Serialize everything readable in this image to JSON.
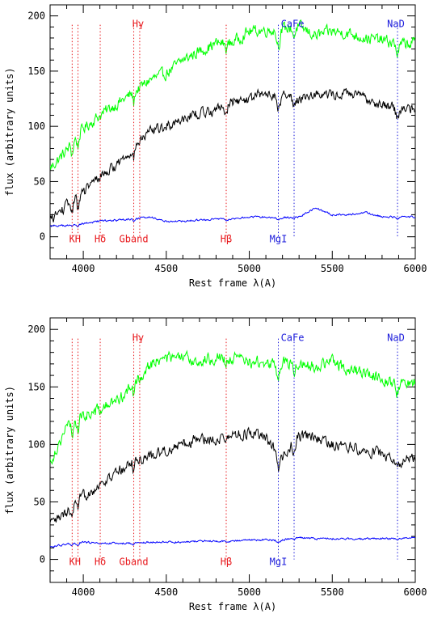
{
  "chart_data": [
    {
      "type": "line",
      "title": "",
      "xlabel": "Rest frame λ(A)",
      "ylabel": "flux (arbitrary units)",
      "xlim": [
        3800,
        6000
      ],
      "ylim": [
        -20,
        210
      ],
      "x_ticks": [
        4000,
        4500,
        5000,
        5500,
        6000
      ],
      "y_ticks": [
        0,
        50,
        100,
        150,
        200
      ],
      "grid": false,
      "legend": "none",
      "colors": {
        "upper": "#00ff00",
        "middle": "#000000",
        "lower": "#0000ff"
      },
      "series": [
        {
          "color": "#00ff00",
          "x": [
            3800,
            3900,
            4000,
            4100,
            4200,
            4300,
            4400,
            4500,
            4600,
            4700,
            4800,
            4900,
            5000,
            5100,
            5200,
            5300,
            5400,
            5500,
            5600,
            5700,
            5800,
            5900,
            6000
          ],
          "y": [
            62,
            78,
            98,
            110,
            120,
            130,
            142,
            148,
            160,
            168,
            175,
            176,
            186,
            187,
            188,
            190,
            182,
            186,
            184,
            180,
            178,
            174,
            176
          ]
        },
        {
          "color": "#000000",
          "x": [
            3800,
            3900,
            4000,
            4100,
            4200,
            4300,
            4400,
            4500,
            4600,
            4700,
            4800,
            4900,
            5000,
            5100,
            5200,
            5300,
            5400,
            5500,
            5600,
            5700,
            5800,
            5900,
            6000
          ],
          "y": [
            15,
            28,
            40,
            55,
            65,
            80,
            95,
            100,
            108,
            112,
            115,
            122,
            125,
            130,
            128,
            125,
            130,
            128,
            130,
            125,
            120,
            115,
            118
          ]
        },
        {
          "color": "#0000ff",
          "x": [
            3800,
            3900,
            4000,
            4100,
            4200,
            4300,
            4400,
            4500,
            4600,
            4700,
            4800,
            4900,
            5000,
            5100,
            5200,
            5300,
            5400,
            5500,
            5600,
            5700,
            5800,
            5900,
            6000
          ],
          "y": [
            10,
            10,
            12,
            14,
            15,
            16,
            18,
            14,
            14,
            15,
            16,
            16,
            18,
            18,
            17,
            18,
            26,
            20,
            20,
            22,
            18,
            18,
            18
          ]
        }
      ],
      "annotations": [
        {
          "text": "KH",
          "x": 3950,
          "line_x": [
            3933,
            3968
          ],
          "color": "#e8171b",
          "position": "bottom"
        },
        {
          "text": "Hδ",
          "x": 4102,
          "line_x": [
            4102
          ],
          "color": "#e8171b",
          "position": "bottom"
        },
        {
          "text": "Gband",
          "x": 4304,
          "line_x": [
            4304
          ],
          "color": "#e8171b",
          "position": "bottom"
        },
        {
          "text": "Hγ",
          "x": 4340,
          "line_x": [
            4340
          ],
          "color": "#e8171b",
          "position": "top"
        },
        {
          "text": "Hβ",
          "x": 4861,
          "line_x": [
            4861
          ],
          "color": "#e8171b",
          "position": "bottom"
        },
        {
          "text": "MgI",
          "x": 5175,
          "line_x": [
            5175
          ],
          "color": "#1a1adb",
          "position": "bottom"
        },
        {
          "text": "CaFe",
          "x": 5270,
          "line_x": [
            5270
          ],
          "color": "#1a1adb",
          "position": "top"
        },
        {
          "text": "NaD",
          "x": 5893,
          "line_x": [
            5893
          ],
          "color": "#1a1adb",
          "position": "top"
        }
      ]
    },
    {
      "type": "line",
      "title": "",
      "xlabel": "Rest frame λ(A)",
      "ylabel": "flux (arbitrary units)",
      "xlim": [
        3800,
        6000
      ],
      "ylim": [
        -20,
        210
      ],
      "x_ticks": [
        4000,
        4500,
        5000,
        5500,
        6000
      ],
      "y_ticks": [
        0,
        50,
        100,
        150,
        200
      ],
      "grid": false,
      "legend": "none",
      "colors": {
        "upper": "#00ff00",
        "middle": "#000000",
        "lower": "#0000ff"
      },
      "series": [
        {
          "color": "#00ff00",
          "x": [
            3800,
            3900,
            4000,
            4100,
            4200,
            4300,
            4400,
            4500,
            4600,
            4700,
            4800,
            4900,
            5000,
            5100,
            5200,
            5300,
            5400,
            5500,
            5600,
            5700,
            5800,
            5900,
            6000
          ],
          "y": [
            85,
            115,
            125,
            130,
            138,
            150,
            170,
            175,
            175,
            172,
            176,
            175,
            172,
            170,
            172,
            170,
            168,
            172,
            165,
            162,
            158,
            152,
            155
          ]
        },
        {
          "color": "#000000",
          "x": [
            3800,
            3900,
            4000,
            4100,
            4200,
            4300,
            4400,
            4500,
            4600,
            4700,
            4800,
            4900,
            5000,
            5100,
            5200,
            5300,
            5400,
            5500,
            5600,
            5700,
            5800,
            5900,
            6000
          ],
          "y": [
            30,
            40,
            55,
            65,
            75,
            85,
            90,
            95,
            100,
            105,
            105,
            108,
            110,
            105,
            88,
            108,
            105,
            100,
            98,
            95,
            92,
            85,
            90
          ]
        },
        {
          "color": "#0000ff",
          "x": [
            3800,
            3900,
            4000,
            4100,
            4200,
            4300,
            4400,
            4500,
            4600,
            4700,
            4800,
            4900,
            5000,
            5100,
            5200,
            5300,
            5400,
            5500,
            5600,
            5700,
            5800,
            5900,
            6000
          ],
          "y": [
            11,
            13,
            15,
            14,
            14,
            14,
            15,
            15,
            15,
            16,
            16,
            16,
            17,
            17,
            17,
            19,
            18,
            18,
            18,
            18,
            18,
            18,
            19
          ]
        }
      ],
      "annotations": [
        {
          "text": "KH",
          "x": 3950,
          "line_x": [
            3933,
            3968
          ],
          "color": "#e8171b",
          "position": "bottom"
        },
        {
          "text": "Hδ",
          "x": 4102,
          "line_x": [
            4102
          ],
          "color": "#e8171b",
          "position": "bottom"
        },
        {
          "text": "Gband",
          "x": 4304,
          "line_x": [
            4304
          ],
          "color": "#e8171b",
          "position": "bottom"
        },
        {
          "text": "Hγ",
          "x": 4340,
          "line_x": [
            4340
          ],
          "color": "#e8171b",
          "position": "top"
        },
        {
          "text": "Hβ",
          "x": 4861,
          "line_x": [
            4861
          ],
          "color": "#e8171b",
          "position": "bottom"
        },
        {
          "text": "MgI",
          "x": 5175,
          "line_x": [
            5175
          ],
          "color": "#1a1adb",
          "position": "bottom"
        },
        {
          "text": "CaFe",
          "x": 5270,
          "line_x": [
            5270
          ],
          "color": "#1a1adb",
          "position": "top"
        },
        {
          "text": "NaD",
          "x": 5893,
          "line_x": [
            5893
          ],
          "color": "#1a1adb",
          "position": "top"
        }
      ]
    }
  ]
}
